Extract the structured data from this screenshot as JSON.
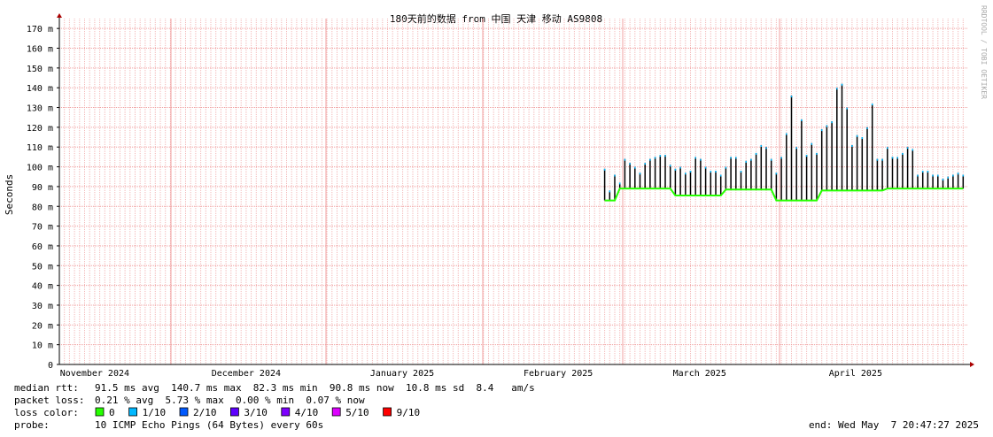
{
  "chart_data": {
    "type": "smokeping",
    "title": "180天前的数据 from 中国 天津 移动 AS9808",
    "y_label": "Seconds",
    "watermark": "RRDTOOL / TOBI OETIKER",
    "xlim": [
      0,
      180
    ],
    "xticks": [
      {
        "value": 7,
        "label": "November 2024"
      },
      {
        "value": 37,
        "label": "December 2024"
      },
      {
        "value": 67.9,
        "label": "January 2025"
      },
      {
        "value": 98.8,
        "label": "February 2025"
      },
      {
        "value": 126.8,
        "label": "March 2025"
      },
      {
        "value": 157.7,
        "label": "April 2025"
      }
    ],
    "ylim": [
      0,
      175
    ],
    "yticks": [
      0,
      {
        "value": 10,
        "label": "10 m"
      },
      {
        "value": 20,
        "label": "20 m"
      },
      {
        "value": 30,
        "label": "30 m"
      },
      {
        "value": 40,
        "label": "40 m"
      },
      {
        "value": 50,
        "label": "50 m"
      },
      {
        "value": 60,
        "label": "60 m"
      },
      {
        "value": 70,
        "label": "70 m"
      },
      {
        "value": 80,
        "label": "80 m"
      },
      {
        "value": 90,
        "label": "90 m"
      },
      {
        "value": 100,
        "label": "100 m"
      },
      {
        "value": 110,
        "label": "110 m"
      },
      {
        "value": 120,
        "label": "120 m"
      },
      {
        "value": 130,
        "label": "130 m"
      },
      {
        "value": 140,
        "label": "140 m"
      },
      {
        "value": 150,
        "label": "150 m"
      },
      {
        "value": 160,
        "label": "160 m"
      },
      {
        "value": 170,
        "label": "170 m"
      }
    ],
    "grid": true,
    "x": [
      108,
      109,
      110,
      111,
      112,
      113,
      114,
      115,
      116,
      117,
      118,
      119,
      120,
      121,
      122,
      123,
      124,
      125,
      126,
      127,
      128,
      129,
      130,
      131,
      132,
      133,
      134,
      135,
      136,
      137,
      138,
      139,
      140,
      141,
      142,
      143,
      144,
      145,
      146,
      147,
      148,
      149,
      150,
      151,
      152,
      153,
      154,
      155,
      156,
      157,
      158,
      159,
      160,
      161,
      162,
      163,
      164,
      165,
      166,
      167,
      168,
      169,
      170,
      171,
      172,
      173,
      174,
      175,
      176,
      177,
      178,
      179
    ],
    "series": [
      {
        "color": "#26ff00",
        "values": [
          83,
          83,
          83,
          89,
          89,
          89,
          89,
          89,
          89,
          89,
          89,
          89,
          89,
          89,
          85.5,
          85.5,
          85.5,
          85.5,
          85.5,
          85.5,
          85.5,
          85.5,
          85.5,
          85.5,
          88.5,
          88.5,
          88.5,
          88.5,
          88.5,
          88.5,
          88.5,
          88.5,
          88.5,
          88.5,
          83,
          83,
          83,
          83,
          83,
          83,
          83,
          83,
          83,
          88,
          88,
          88,
          88,
          88,
          88,
          88,
          88,
          88,
          88,
          88,
          88,
          88,
          89,
          89,
          89,
          89,
          89,
          89,
          89,
          89,
          89,
          89,
          89,
          89,
          89,
          89,
          89,
          89
        ]
      },
      {
        "color": "#000000",
        "values": [
          99,
          88,
          96,
          92,
          104,
          102,
          100,
          97,
          102,
          104,
          105,
          106,
          106,
          101,
          99,
          100,
          97,
          98,
          105,
          104,
          100,
          98,
          98,
          96,
          100,
          105,
          105,
          98,
          103,
          104,
          107,
          111,
          110,
          104,
          97,
          105,
          117,
          136,
          110,
          124,
          106,
          112,
          107,
          119,
          121,
          123,
          140,
          142,
          130,
          111,
          116,
          115,
          120,
          132,
          104,
          104,
          110,
          105,
          105,
          107,
          110,
          109,
          96,
          98,
          98,
          96,
          96,
          94,
          95,
          96,
          97,
          96
        ]
      }
    ],
    "stats": {
      "median_label": "median rtt:",
      "median_text": "91.5 ms avg  140.7 ms max  82.3 ms min  90.8 ms now  10.8 ms sd  8.4   am/s",
      "loss_label": "packet loss:",
      "loss_text": "0.21 % avg  5.73 % max  0.00 % min  0.07 % now",
      "color_label": "loss color:",
      "loss_colors": [
        {
          "name": "0",
          "color": "#26ff00"
        },
        {
          "name": "1/10",
          "color": "#00b8ff"
        },
        {
          "name": "2/10",
          "color": "#0059ff"
        },
        {
          "name": "3/10",
          "color": "#5e00ff"
        },
        {
          "name": "4/10",
          "color": "#7e00ff"
        },
        {
          "name": "5/10",
          "color": "#dd00ff"
        },
        {
          "name": "9/10",
          "color": "#ff0000"
        }
      ],
      "probe_label": "probe:",
      "probe_text": "10 ICMP Echo Pings (64 Bytes) every 60s",
      "end_text": "end: Wed May  7 20:47:27 2025"
    }
  }
}
